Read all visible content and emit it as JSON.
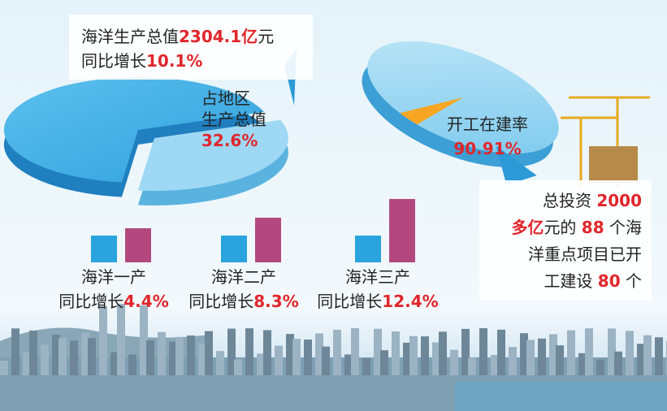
{
  "headline": {
    "lines": [
      [
        {
          "text": "海洋生产总值"
        },
        {
          "text": "2304.1亿",
          "em": true
        },
        {
          "text": "元"
        }
      ],
      [
        {
          "text": "同比增长"
        },
        {
          "text": "10.1%",
          "em": true
        }
      ]
    ]
  },
  "share": {
    "label": [
      "占地区",
      "生产总值"
    ],
    "value": "32.6%"
  },
  "construction": {
    "label": "开工在建率",
    "value": "90.91%"
  },
  "projects": {
    "lines": [
      [
        {
          "text": "总投资 "
        },
        {
          "text": "2000",
          "em": true
        }
      ],
      [
        {
          "text": "多亿",
          "em": true
        },
        {
          "text": "元的 "
        },
        {
          "text": "88",
          "em": true
        },
        {
          "text": " 个海"
        }
      ],
      [
        {
          "text": "洋重点项目已开"
        }
      ],
      [
        {
          "text": "工建设 "
        },
        {
          "text": "80",
          "em": true
        },
        {
          "text": " 个"
        }
      ]
    ]
  },
  "industries": [
    {
      "name": "海洋一产",
      "growth_label": "同比增长",
      "growth": "4.4%"
    },
    {
      "name": "海洋二产",
      "growth_label": "同比增长",
      "growth": "8.3%"
    },
    {
      "name": "海洋三产",
      "growth_label": "同比增长",
      "growth": "12.4%"
    }
  ]
}
